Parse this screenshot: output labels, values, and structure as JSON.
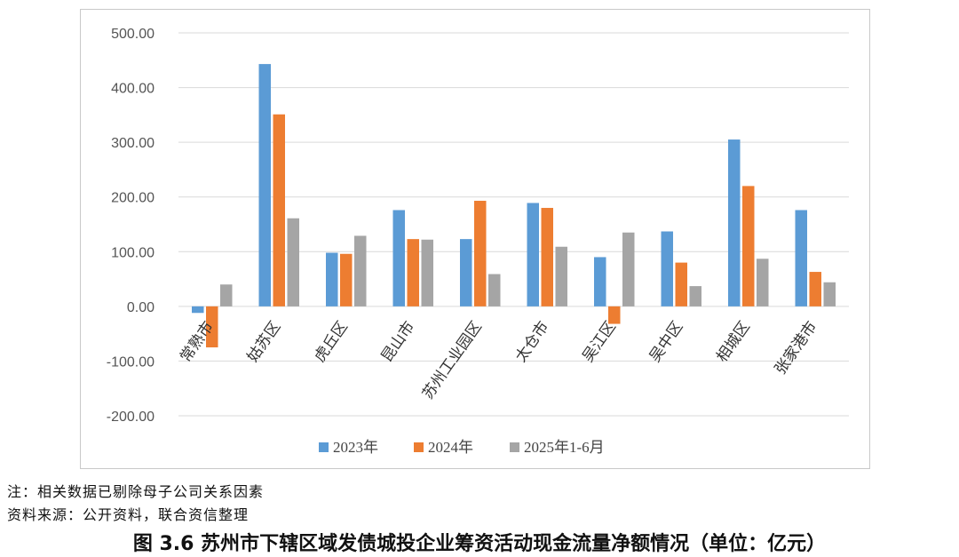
{
  "chart_data": {
    "type": "bar",
    "categories": [
      "常熟市",
      "姑苏区",
      "虎丘区",
      "昆山市",
      "苏州工业园区",
      "太仓市",
      "吴江区",
      "吴中区",
      "相城区",
      "张家港市"
    ],
    "series": [
      {
        "name": "2023年",
        "values": [
          -12,
          443,
          98,
          176,
          123,
          189,
          90,
          137,
          305,
          176
        ],
        "color": "#5b9bd5"
      },
      {
        "name": "2024年",
        "values": [
          -75,
          351,
          96,
          123,
          193,
          180,
          -32,
          80,
          220,
          63
        ],
        "color": "#ed7d31"
      },
      {
        "name": "2025年1-6月",
        "values": [
          40,
          161,
          129,
          122,
          59,
          109,
          135,
          37,
          87,
          44
        ],
        "color": "#a5a5a5"
      }
    ],
    "yticks": [
      "500.00",
      "400.00",
      "300.00",
      "200.00",
      "100.00",
      "0.00",
      "-100.00",
      "-200.00"
    ],
    "ylim": [
      -200,
      500
    ],
    "grid": true,
    "legend_position": "bottom"
  },
  "notes": {
    "line1": "注：相关数据已剔除母子公司关系因素",
    "line2": "资料来源：公开资料，联合资信整理"
  },
  "caption": "图 3.6   苏州市下辖区域发债城投企业筹资活动现金流量净额情况（单位：亿元）"
}
